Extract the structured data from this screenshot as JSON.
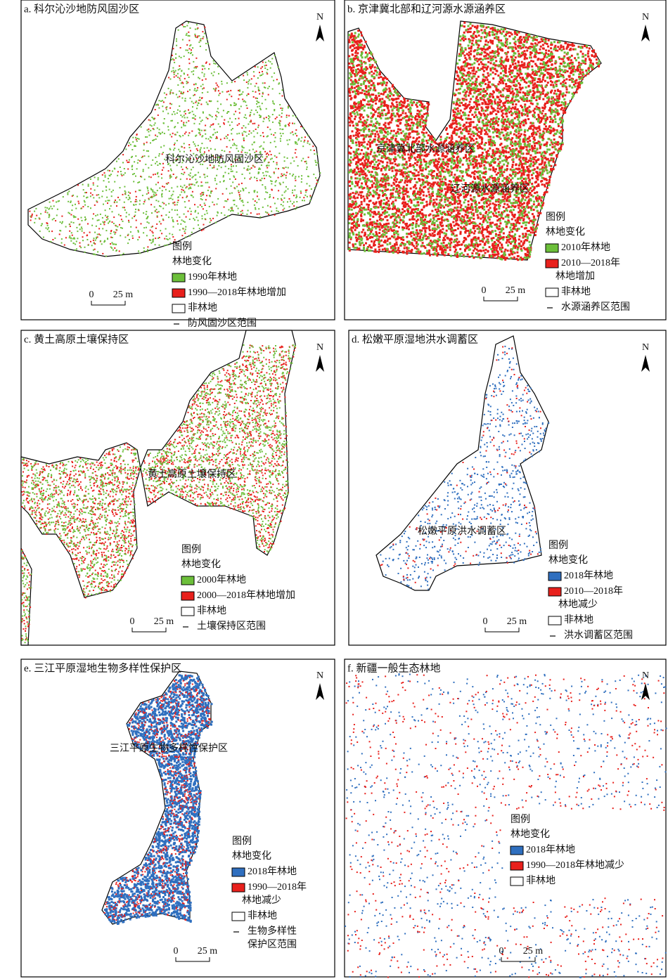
{
  "panels": [
    {
      "title": "a. 科尔沁沙地防风固沙区",
      "regions": [
        "科尔沁沙地防风固沙区"
      ],
      "north": "N",
      "legend": {
        "title": "图例",
        "subtitle": "林地变化",
        "items": [
          {
            "label": [
              "1990年林地"
            ],
            "swatch": "box",
            "color": "#6cbf3a"
          },
          {
            "label": [
              "1990—2018年林地增加"
            ],
            "swatch": "box",
            "color": "#e8201c"
          },
          {
            "label": [
              "非林地"
            ],
            "swatch": "box",
            "color": "#ffffff"
          },
          {
            "label": [
              "防风固沙区范围"
            ],
            "swatch": "line",
            "color": "#000000"
          }
        ]
      },
      "scale": {
        "zero": "0",
        "length": "25 m"
      }
    },
    {
      "title": "b. 京津冀北部和辽河源水源涵养区",
      "regions": [
        "京津冀北部水源涵养区",
        "辽河源水源涵养区"
      ],
      "north": "N",
      "legend": {
        "title": "图例",
        "subtitle": "林地变化",
        "items": [
          {
            "label": [
              "2010年林地"
            ],
            "swatch": "box",
            "color": "#6cbf3a"
          },
          {
            "label": [
              "2010—2018年",
              "林地增加"
            ],
            "swatch": "box",
            "color": "#e8201c"
          },
          {
            "label": [
              "非林地"
            ],
            "swatch": "box",
            "color": "#ffffff"
          },
          {
            "label": [
              "水源涵养区范围"
            ],
            "swatch": "line",
            "color": "#000000"
          }
        ]
      },
      "scale": {
        "zero": "0",
        "length": "25 m"
      }
    },
    {
      "title": "c. 黄土高原土壤保持区",
      "regions": [
        "黄土高原土壤保持区"
      ],
      "north": "N",
      "legend": {
        "title": "图例",
        "subtitle": "林地变化",
        "items": [
          {
            "label": [
              "2000年林地"
            ],
            "swatch": "box",
            "color": "#6cbf3a"
          },
          {
            "label": [
              "2000—2018年林地增加"
            ],
            "swatch": "box",
            "color": "#e8201c"
          },
          {
            "label": [
              "非林地"
            ],
            "swatch": "box",
            "color": "#ffffff"
          },
          {
            "label": [
              "土壤保持区范围"
            ],
            "swatch": "line",
            "color": "#000000"
          }
        ]
      },
      "scale": {
        "zero": "0",
        "length": "25 m"
      }
    },
    {
      "title": "d. 松嫩平原湿地洪水调蓄区",
      "regions": [
        "松嫩平原洪水调蓄区"
      ],
      "north": "N",
      "legend": {
        "title": "图例",
        "subtitle": "林地变化",
        "items": [
          {
            "label": [
              "2018年林地"
            ],
            "swatch": "box",
            "color": "#2f6fbf"
          },
          {
            "label": [
              "2010—2018年",
              "林地减少"
            ],
            "swatch": "box",
            "color": "#e8201c"
          },
          {
            "label": [
              "非林地"
            ],
            "swatch": "box",
            "color": "#ffffff"
          },
          {
            "label": [
              "洪水调蓄区范围"
            ],
            "swatch": "line",
            "color": "#000000"
          }
        ]
      },
      "scale": {
        "zero": "0",
        "length": "25 m"
      }
    },
    {
      "title": "e. 三江平原湿地生物多样性保护区",
      "regions": [
        "三江平原生物多样性保护区"
      ],
      "north": "N",
      "legend": {
        "title": "图例",
        "subtitle": "林地变化",
        "items": [
          {
            "label": [
              "2018年林地"
            ],
            "swatch": "box",
            "color": "#2f6fbf"
          },
          {
            "label": [
              "1990—2018年",
              "林地减少"
            ],
            "swatch": "box",
            "color": "#e8201c"
          },
          {
            "label": [
              "非林地"
            ],
            "swatch": "box",
            "color": "#ffffff"
          },
          {
            "label": [
              "生物多样性",
              "保护区范围"
            ],
            "swatch": "line",
            "color": "#000000"
          }
        ]
      },
      "scale": {
        "zero": "0",
        "length": "25 m"
      }
    },
    {
      "title": "f. 新疆一般生态林地",
      "regions": [],
      "north": "N",
      "legend": {
        "title": "图例",
        "subtitle": "林地变化",
        "items": [
          {
            "label": [
              "2018年林地"
            ],
            "swatch": "box",
            "color": "#2f6fbf"
          },
          {
            "label": [
              "1990—2018年林地减少"
            ],
            "swatch": "box",
            "color": "#e8201c"
          },
          {
            "label": [
              "非林地"
            ],
            "swatch": "box",
            "color": "#ffffff"
          }
        ]
      },
      "scale": {
        "zero": "0",
        "length": "25 m"
      }
    }
  ]
}
